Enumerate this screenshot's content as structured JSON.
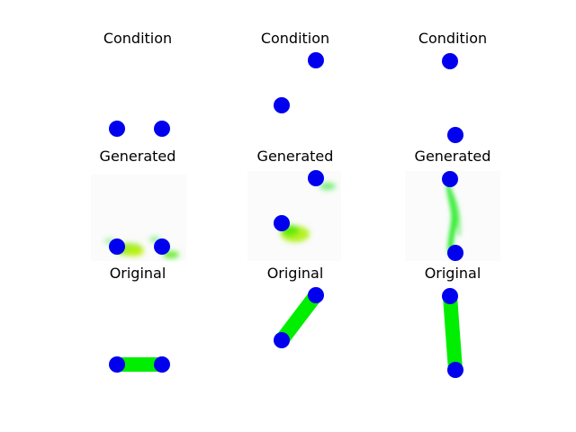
{
  "colors": {
    "joint": "#0000ee",
    "limb": "#00ee00",
    "generated_smear": "#b8f000",
    "generated_bg": "#fafbfa"
  },
  "rows": [
    {
      "title": "Condition",
      "panels": [
        {
          "points": [
            [
              130,
              143
            ],
            [
              180,
              143
            ]
          ],
          "links": []
        },
        {
          "points": [
            [
              351,
              67
            ],
            [
              313,
              117
            ]
          ],
          "links": []
        },
        {
          "points": [
            [
              500,
              68
            ],
            [
              506,
              150
            ]
          ],
          "links": []
        }
      ]
    },
    {
      "title": "Generated",
      "panels": [
        {
          "points": [
            [
              130,
              274
            ],
            [
              180,
              274
            ]
          ],
          "links": []
        },
        {
          "points": [
            [
              351,
              198
            ],
            [
              313,
              248
            ]
          ],
          "links": []
        },
        {
          "points": [
            [
              500,
              199
            ],
            [
              506,
              281
            ]
          ],
          "links": []
        }
      ]
    },
    {
      "title": "Original",
      "panels": [
        {
          "points": [
            [
              130,
              405
            ],
            [
              180,
              405
            ]
          ],
          "links": [
            [
              0,
              1
            ]
          ]
        },
        {
          "points": [
            [
              351,
              328
            ],
            [
              313,
              378
            ]
          ],
          "links": [
            [
              0,
              1
            ]
          ]
        },
        {
          "points": [
            [
              500,
              329
            ],
            [
              506,
              411
            ]
          ],
          "links": [
            [
              0,
              1
            ]
          ]
        }
      ]
    }
  ]
}
